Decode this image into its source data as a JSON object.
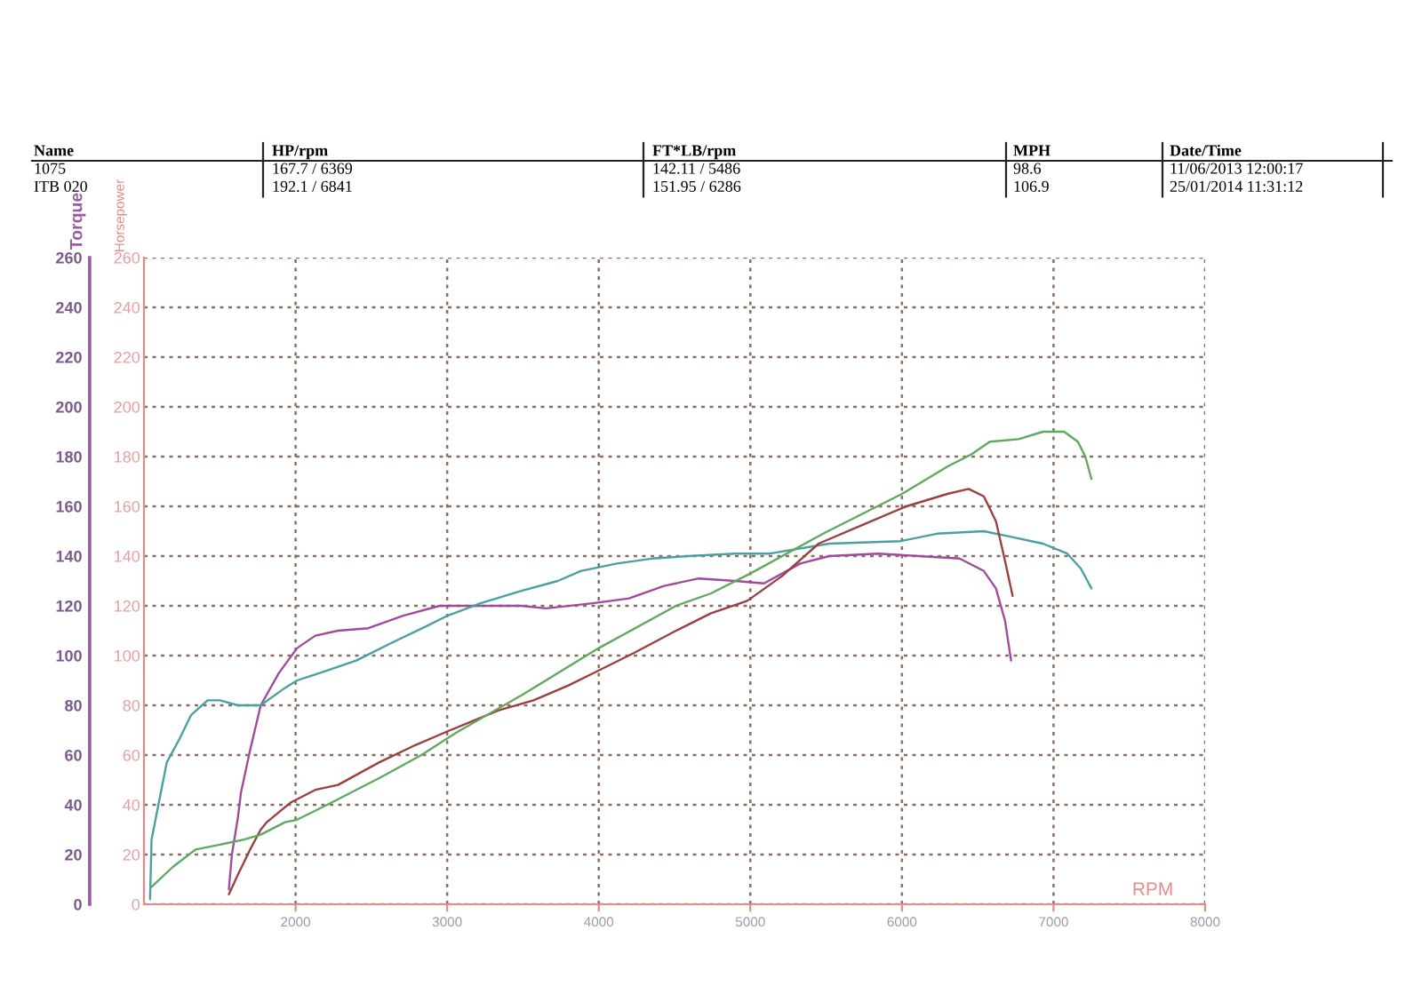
{
  "chart_data": {
    "type": "line",
    "xlabel": "RPM",
    "ylabel": "Torque",
    "y2label": "Horsepower",
    "annotations": [
      "Name",
      "HP/rpm",
      "FT*LB/rpm",
      "MPH",
      "Date/Time",
      "1075",
      "167.7 / 6369",
      "142.11 / 5486",
      "98.6",
      "11/06/2013 12:00:17",
      "ITB 020",
      "192.1 / 6841",
      "151.95 / 6286",
      "106.9",
      "25/01/2014 11:31:12"
    ],
    "xlim": [
      1000,
      8000
    ],
    "xticks": [
      2000,
      3000,
      4000,
      5000,
      6000,
      7000,
      8000
    ],
    "ylim": [
      0,
      260
    ],
    "yticks": [
      0,
      20,
      40,
      60,
      80,
      100,
      120,
      140,
      160,
      180,
      200,
      220,
      240,
      260
    ],
    "y2lim": [
      0,
      260
    ],
    "y2ticks": [
      0,
      20,
      40,
      60,
      80,
      100,
      120,
      140,
      160,
      180,
      200,
      220,
      240,
      260
    ],
    "grid": true,
    "series": [
      {
        "color": "#9c3f3f",
        "axis": "y2",
        "x": [
          1560,
          1620,
          1700,
          1770,
          1810,
          1970,
          2130,
          2280,
          2550,
          2790,
          3020,
          3340,
          3570,
          3800,
          4000,
          4230,
          4510,
          4740,
          4980,
          5210,
          5450,
          5720,
          6030,
          6300,
          6440,
          6540,
          6620,
          6680,
          6730
        ],
        "values": [
          4,
          12,
          22,
          30,
          33,
          41,
          46,
          48,
          57,
          64,
          70,
          78,
          82,
          88,
          94,
          101,
          110,
          117,
          122,
          132,
          145,
          152,
          160,
          165,
          167,
          164,
          154,
          138,
          124
        ]
      },
      {
        "color": "#a04a9c",
        "x": [
          1560,
          1580,
          1620,
          1640,
          1700,
          1770,
          1890,
          2010,
          2130,
          2280,
          2480,
          2710,
          2950,
          3220,
          3490,
          3650,
          3960,
          4200,
          4430,
          4660,
          4900,
          5090,
          5330,
          5520,
          5840,
          6110,
          6380,
          6540,
          6620,
          6680,
          6720
        ],
        "values": [
          6,
          20,
          35,
          45,
          62,
          80,
          93,
          103,
          108,
          110,
          111,
          116,
          120,
          120,
          120,
          119,
          121,
          123,
          128,
          131,
          130,
          129,
          137,
          140,
          141,
          140,
          139,
          134,
          127,
          114,
          98
        ]
      },
      {
        "color": "#5fa85f",
        "axis": "y2",
        "x": [
          1050,
          1190,
          1340,
          1500,
          1660,
          1770,
          1930,
          2010,
          2240,
          2560,
          2830,
          3060,
          3490,
          4000,
          4510,
          4740,
          5000,
          5480,
          6000,
          6300,
          6460,
          6580,
          6770,
          6930,
          7070,
          7160,
          7210,
          7250
        ],
        "values": [
          7,
          15,
          22,
          24,
          26,
          28,
          33,
          34,
          41,
          51,
          60,
          69,
          84,
          103,
          120,
          125,
          133,
          149,
          165,
          176,
          181,
          186,
          187,
          190,
          190,
          186,
          180,
          171
        ]
      },
      {
        "color": "#4a9fa0",
        "x": [
          1040,
          1050,
          1150,
          1230,
          1310,
          1420,
          1500,
          1620,
          1770,
          1930,
          2010,
          2160,
          2400,
          2630,
          2870,
          3000,
          3220,
          3490,
          3730,
          3880,
          4120,
          4350,
          4590,
          4900,
          5130,
          5520,
          5990,
          6230,
          6540,
          6700,
          6930,
          7090,
          7180,
          7250
        ],
        "values": [
          2,
          26,
          57,
          66,
          76,
          82,
          82,
          80,
          80,
          87,
          90,
          93,
          98,
          105,
          112,
          116,
          121,
          126,
          130,
          134,
          137,
          139,
          140,
          141,
          141,
          145,
          146,
          149,
          150,
          148,
          145,
          141,
          135,
          127
        ]
      }
    ]
  }
}
